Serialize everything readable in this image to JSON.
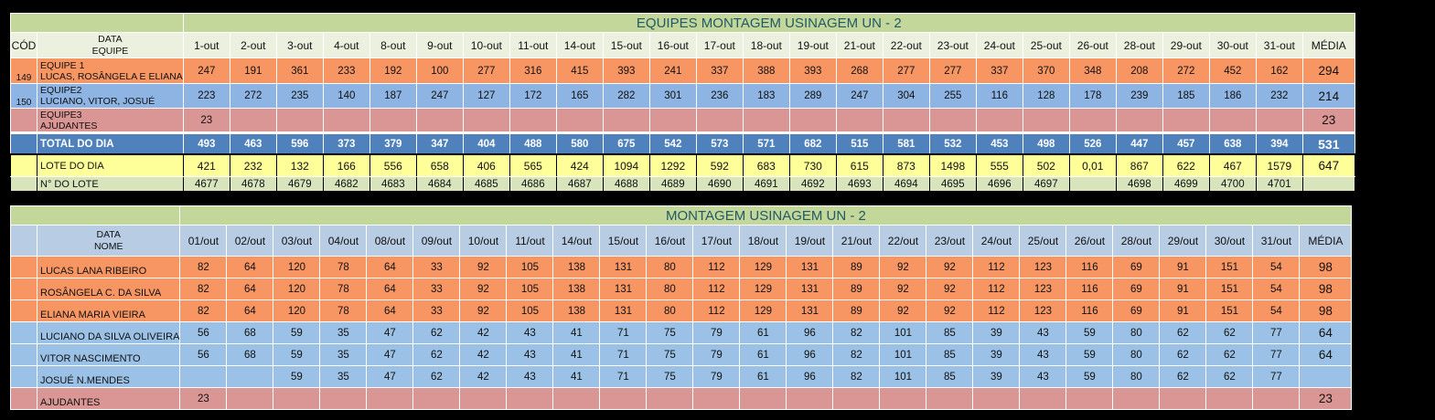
{
  "table1": {
    "title": "EQUIPES MONTAGEM USINAGEM UN - 2",
    "header": {
      "cod": "CÓD",
      "label_top": "DATA",
      "label_bottom": "EQUIPE",
      "days": [
        "1-out",
        "2-out",
        "3-out",
        "4-out",
        "8-out",
        "9-out",
        "10-out",
        "11-out",
        "14-out",
        "15-out",
        "16-out",
        "17-out",
        "18-out",
        "19-out",
        "21-out",
        "22-out",
        "23-out",
        "24-out",
        "25-out",
        "26-out",
        "28-out",
        "29-out",
        "30-out",
        "31-out"
      ],
      "avg": "MÉDIA"
    },
    "rows": [
      {
        "cod": "149",
        "line1": "EQUIPE 1",
        "line2": "LUCAS, ROSÂNGELA E ELIANA",
        "values": [
          "247",
          "191",
          "361",
          "233",
          "192",
          "100",
          "277",
          "316",
          "415",
          "393",
          "241",
          "337",
          "388",
          "393",
          "268",
          "277",
          "277",
          "337",
          "370",
          "348",
          "208",
          "272",
          "452",
          "162"
        ],
        "avg": "294",
        "color": "#f79663"
      },
      {
        "cod": "150",
        "line1": "EQUIPE2",
        "line2": "LUCIANO, VITOR, JOSUÉ",
        "values": [
          "223",
          "272",
          "235",
          "140",
          "187",
          "247",
          "127",
          "172",
          "165",
          "282",
          "301",
          "236",
          "183",
          "289",
          "247",
          "304",
          "255",
          "116",
          "128",
          "178",
          "239",
          "185",
          "186",
          "232"
        ],
        "avg": "214",
        "color": "#8db4e2"
      },
      {
        "cod": "",
        "line1": "EQUIPE3",
        "line2": "AJUDANTES",
        "values": [
          "23",
          "",
          "",
          "",
          "",
          "",
          "",
          "",
          "",
          "",
          "",
          "",
          "",
          "",
          "",
          "",
          "",
          "",
          "",
          "",
          "",
          "",
          "",
          ""
        ],
        "avg": "23",
        "color": "#da9694"
      }
    ],
    "total": {
      "label": "TOTAL DO DIA",
      "values": [
        "493",
        "463",
        "596",
        "373",
        "379",
        "347",
        "404",
        "488",
        "580",
        "675",
        "542",
        "573",
        "571",
        "682",
        "515",
        "581",
        "532",
        "453",
        "498",
        "526",
        "447",
        "457",
        "638",
        "394"
      ],
      "avg": "531"
    },
    "lote": {
      "label": "LOTE DO DIA",
      "values": [
        "421",
        "232",
        "132",
        "166",
        "556",
        "658",
        "406",
        "565",
        "424",
        "1094",
        "1292",
        "592",
        "683",
        "730",
        "615",
        "873",
        "1498",
        "555",
        "502",
        "0,01",
        "867",
        "622",
        "467",
        "1579"
      ],
      "avg": "647"
    },
    "nlote": {
      "label": "N° DO LOTE",
      "values": [
        "4677",
        "4678",
        "4679",
        "4682",
        "4683",
        "4684",
        "4685",
        "4686",
        "4687",
        "4688",
        "4689",
        "4690",
        "4691",
        "4692",
        "4693",
        "4694",
        "4695",
        "4696",
        "4697",
        "",
        "4698",
        "4699",
        "4700",
        "4701"
      ],
      "avg": ""
    }
  },
  "table2": {
    "title": "MONTAGEM USINAGEM UN - 2",
    "header": {
      "label_top": "DATA",
      "label_bottom": "NOME",
      "days": [
        "01/out",
        "02/out",
        "03/out",
        "04/out",
        "08/out",
        "09/out",
        "10/out",
        "11/out",
        "14/out",
        "15/out",
        "16/out",
        "17/out",
        "18/out",
        "19/out",
        "21/out",
        "22/out",
        "23/out",
        "24/out",
        "25/out",
        "26/out",
        "28/out",
        "29/out",
        "30/out",
        "31/out"
      ],
      "avg": "MÉDIA"
    },
    "rows": [
      {
        "name": "LUCAS LANA RIBEIRO",
        "values": [
          "82",
          "64",
          "120",
          "78",
          "64",
          "33",
          "92",
          "105",
          "138",
          "131",
          "80",
          "112",
          "129",
          "131",
          "89",
          "92",
          "92",
          "112",
          "123",
          "116",
          "69",
          "91",
          "151",
          "54"
        ],
        "avg": "98",
        "color": "#f79663"
      },
      {
        "name": "ROSÂNGELA C. DA SILVA",
        "values": [
          "82",
          "64",
          "120",
          "78",
          "64",
          "33",
          "92",
          "105",
          "138",
          "131",
          "80",
          "112",
          "129",
          "131",
          "89",
          "92",
          "92",
          "112",
          "123",
          "116",
          "69",
          "91",
          "151",
          "54"
        ],
        "avg": "98",
        "color": "#f79663"
      },
      {
        "name": "ELIANA MARIA VIEIRA",
        "values": [
          "82",
          "64",
          "120",
          "78",
          "64",
          "33",
          "92",
          "105",
          "138",
          "131",
          "80",
          "112",
          "129",
          "131",
          "89",
          "92",
          "92",
          "112",
          "123",
          "116",
          "69",
          "91",
          "151",
          "54"
        ],
        "avg": "98",
        "color": "#f79663"
      },
      {
        "name": "LUCIANO DA SILVA OLIVEIRA",
        "values": [
          "56",
          "68",
          "59",
          "35",
          "47",
          "62",
          "42",
          "43",
          "41",
          "71",
          "75",
          "79",
          "61",
          "96",
          "82",
          "101",
          "85",
          "39",
          "43",
          "59",
          "80",
          "62",
          "62",
          "77"
        ],
        "avg": "64",
        "color": "#9bc2e6"
      },
      {
        "name": "VITOR NASCIMENTO",
        "values": [
          "56",
          "68",
          "59",
          "35",
          "47",
          "62",
          "42",
          "43",
          "41",
          "71",
          "75",
          "79",
          "61",
          "96",
          "82",
          "101",
          "85",
          "39",
          "43",
          "59",
          "80",
          "62",
          "62",
          "77"
        ],
        "avg": "64",
        "color": "#9bc2e6"
      },
      {
        "name": "JOSUÉ N.MENDES",
        "values": [
          "",
          "",
          "59",
          "35",
          "47",
          "62",
          "42",
          "43",
          "41",
          "71",
          "75",
          "79",
          "61",
          "96",
          "82",
          "101",
          "85",
          "39",
          "43",
          "59",
          "80",
          "62",
          "62",
          "77"
        ],
        "avg": "",
        "color": "#9bc2e6"
      },
      {
        "name": "AJUDANTES",
        "values": [
          "23",
          "",
          "",
          "",
          "",
          "",
          "",
          "",
          "",
          "",
          "",
          "",
          "",
          "",
          "",
          "",
          "",
          "",
          "",
          "",
          "",
          "",
          "",
          ""
        ],
        "avg": "23",
        "color": "#da9694"
      }
    ]
  }
}
